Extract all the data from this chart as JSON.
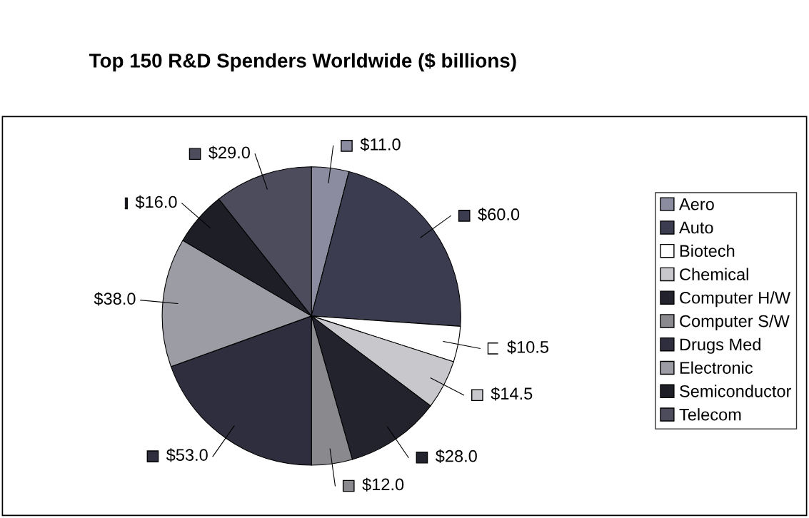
{
  "chart_data": {
    "type": "pie",
    "title": "Top 150 R&D Spenders Worldwide ($ billions)",
    "categories": [
      "Aero",
      "Auto",
      "Biotech",
      "Chemical",
      "Computer H/W",
      "Computer S/W",
      "Drugs Med",
      "Electronic",
      "Semiconductor",
      "Telecom"
    ],
    "values": [
      11.0,
      60.0,
      10.5,
      14.5,
      28.0,
      12.0,
      53.0,
      38.0,
      16.0,
      29.0
    ],
    "value_labels": [
      "$11.0",
      "$60.0",
      "$10.5",
      "$14.5",
      "$28.0",
      "$12.0",
      "$53.0",
      "$38.0",
      "$16.0",
      "$29.0"
    ],
    "colors": [
      "#8c8ca0",
      "#3c3c50",
      "#ffffff",
      "#c8c8cc",
      "#23232e",
      "#8a8a8e",
      "#2e2e3e",
      "#9c9ca4",
      "#1e1e26",
      "#4c4c5c"
    ],
    "legend": "right"
  }
}
